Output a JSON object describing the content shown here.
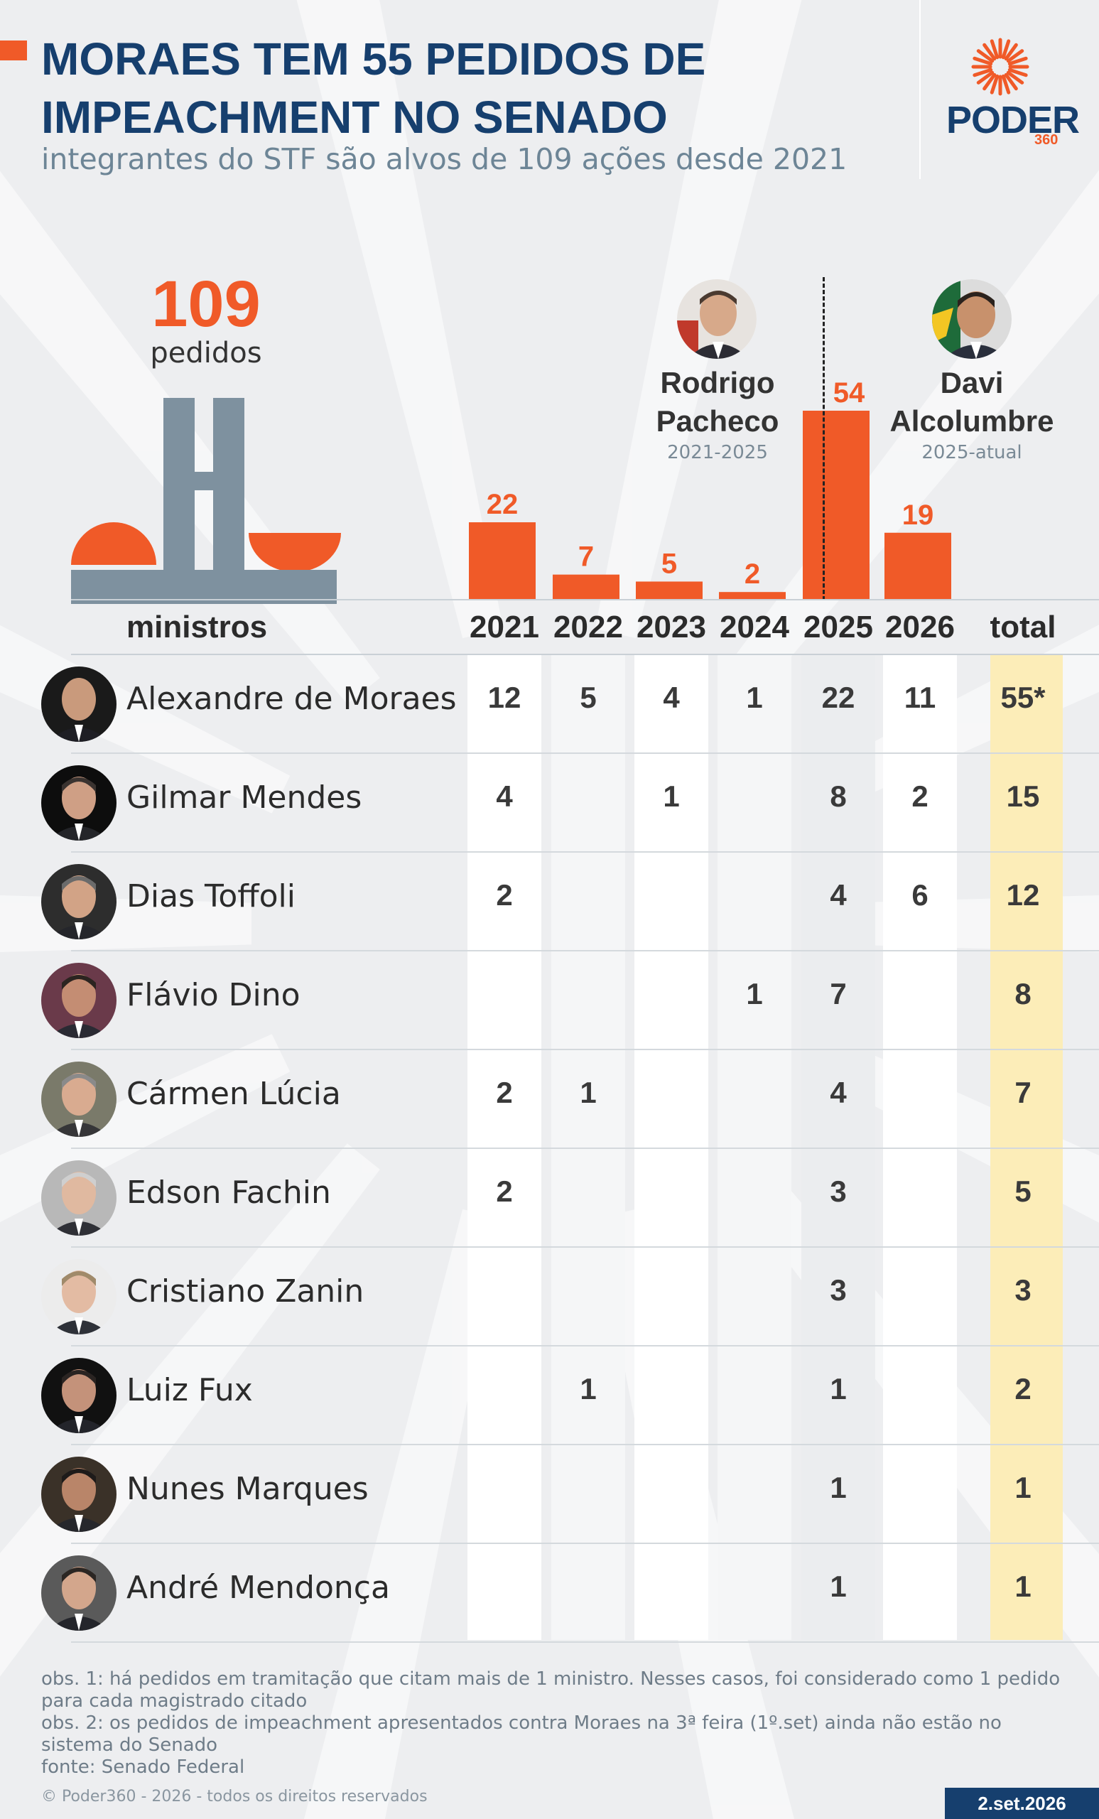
{
  "header": {
    "title": "MORAES TEM 55 PEDIDOS DE IMPEACHMENT NO SENADO",
    "subtitle": "integrantes do STF são alvos de 109 ações desde 2021"
  },
  "logo": {
    "word": "PODER",
    "number": "360",
    "icon": "sun-rays-icon",
    "color": "#f05a28"
  },
  "summary": {
    "total_value": "109",
    "total_label": "pedidos",
    "icon": "congress-building-icon"
  },
  "presidents": [
    {
      "name_line1": "Rodrigo",
      "name_line2": "Pacheco",
      "years": "2021-2025"
    },
    {
      "name_line1": "Davi",
      "name_line2": "Alcolumbre",
      "years": "2025-atual"
    }
  ],
  "chart_data": {
    "type": "bar",
    "categories": [
      "2021",
      "2022",
      "2023",
      "2024",
      "2025",
      "2026"
    ],
    "values": [
      22,
      7,
      5,
      2,
      54,
      19
    ],
    "xlabel": "",
    "ylabel": "",
    "ylim": [
      0,
      54
    ],
    "grid": false,
    "annotations": [
      "Rodrigo Pacheco 2021-2025",
      "Davi Alcolumbre 2025-atual"
    ],
    "bar_color": "#f05a28"
  },
  "table": {
    "headers": {
      "name": "ministros",
      "years": [
        "2021",
        "2022",
        "2023",
        "2024",
        "2025",
        "2026"
      ],
      "total": "total"
    },
    "rows": [
      {
        "name": "Alexandre de Moraes",
        "values": [
          "12",
          "5",
          "4",
          "1",
          "22",
          "11"
        ],
        "total": "55*"
      },
      {
        "name": "Gilmar Mendes",
        "values": [
          "4",
          "",
          "1",
          "",
          "8",
          "2"
        ],
        "total": "15"
      },
      {
        "name": "Dias Toffoli",
        "values": [
          "2",
          "",
          "",
          "",
          "4",
          "6"
        ],
        "total": "12"
      },
      {
        "name": "Flávio Dino",
        "values": [
          "",
          "",
          "",
          "1",
          "7",
          ""
        ],
        "total": "8"
      },
      {
        "name": "Cármen Lúcia",
        "values": [
          "2",
          "1",
          "",
          "",
          "4",
          ""
        ],
        "total": "7"
      },
      {
        "name": "Edson Fachin",
        "values": [
          "2",
          "",
          "",
          "",
          "3",
          ""
        ],
        "total": "5"
      },
      {
        "name": "Cristiano Zanin",
        "values": [
          "",
          "",
          "",
          "",
          "3",
          ""
        ],
        "total": "3"
      },
      {
        "name": "Luiz Fux",
        "values": [
          "",
          "1",
          "",
          "",
          "1",
          ""
        ],
        "total": "2"
      },
      {
        "name": "Nunes Marques",
        "values": [
          "",
          "",
          "",
          "",
          "1",
          ""
        ],
        "total": "1"
      },
      {
        "name": "André Mendonça",
        "values": [
          "",
          "",
          "",
          "",
          "1",
          ""
        ],
        "total": "1"
      }
    ]
  },
  "notes": {
    "obs1": "obs. 1: há pedidos em tramitação que citam mais de 1 ministro. Nesses casos, foi considerado como 1 pedido para cada magistrado citado",
    "obs2": "obs. 2: os pedidos de impeachment apresentados contra Moraes na 3ª feira (1º.set) ainda não estão no sistema do Senado",
    "source": "fonte: Senado Federal"
  },
  "footer": {
    "copyright": "© Poder360 - 2026 - todos os direitos reservados",
    "date": "2.set.2026"
  },
  "colors": {
    "accent": "#f05a28",
    "navy": "#163f6e",
    "gray_building": "#7e919f",
    "total_highlight": "#fcedb8"
  }
}
